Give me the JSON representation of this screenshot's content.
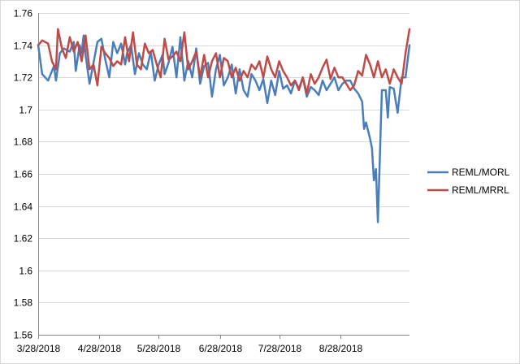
{
  "chart_data": {
    "type": "line",
    "title": "",
    "xlabel": "",
    "ylabel": "",
    "ylim": [
      1.56,
      1.76
    ],
    "yticks": [
      1.56,
      1.58,
      1.6,
      1.62,
      1.64,
      1.66,
      1.68,
      1.7,
      1.72,
      1.74,
      1.76
    ],
    "ytick_labels": [
      "1.56",
      "1.58",
      "1.6",
      "1.62",
      "1.64",
      "1.66",
      "1.68",
      "1.7",
      "1.72",
      "1.74",
      "1.76"
    ],
    "xlim": [
      "2018-03-28",
      "2018-10-02"
    ],
    "xticks": [
      "2018-03-28",
      "2018-04-28",
      "2018-05-28",
      "2018-06-28",
      "2018-07-28",
      "2018-08-28"
    ],
    "xtick_labels": [
      "3/28/2018",
      "4/28/2018",
      "5/28/2018",
      "6/28/2018",
      "7/28/2018",
      "8/28/2018"
    ],
    "grid": "horizontal",
    "legend": "right",
    "series": [
      {
        "name": "REML/MORL",
        "color": "#4a7ebb",
        "x": [
          "2018-03-28",
          "2018-03-30",
          "2018-04-02",
          "2018-04-05",
          "2018-04-06",
          "2018-04-08",
          "2018-04-10",
          "2018-04-13",
          "2018-04-15",
          "2018-04-16",
          "2018-04-18",
          "2018-04-19",
          "2018-04-20",
          "2018-04-21",
          "2018-04-23",
          "2018-04-25",
          "2018-04-27",
          "2018-04-29",
          "2018-05-01",
          "2018-05-03",
          "2018-05-05",
          "2018-05-07",
          "2018-05-09",
          "2018-05-11",
          "2018-05-12",
          "2018-05-14",
          "2018-05-16",
          "2018-05-18",
          "2018-05-20",
          "2018-05-22",
          "2018-05-24",
          "2018-05-26",
          "2018-05-28",
          "2018-05-30",
          "2018-05-31",
          "2018-06-02",
          "2018-06-04",
          "2018-06-06",
          "2018-06-08",
          "2018-06-10",
          "2018-06-12",
          "2018-06-14",
          "2018-06-16",
          "2018-06-18",
          "2018-06-20",
          "2018-06-22",
          "2018-06-24",
          "2018-06-26",
          "2018-06-28",
          "2018-06-30",
          "2018-07-02",
          "2018-07-04",
          "2018-07-06",
          "2018-07-08",
          "2018-07-10",
          "2018-07-12",
          "2018-07-14",
          "2018-07-16",
          "2018-07-18",
          "2018-07-20",
          "2018-07-22",
          "2018-07-24",
          "2018-07-26",
          "2018-07-28",
          "2018-07-30",
          "2018-08-01",
          "2018-08-03",
          "2018-08-05",
          "2018-08-07",
          "2018-08-09",
          "2018-08-11",
          "2018-08-13",
          "2018-08-15",
          "2018-08-17",
          "2018-08-19",
          "2018-08-21",
          "2018-08-23",
          "2018-08-25",
          "2018-08-27",
          "2018-08-29",
          "2018-08-31",
          "2018-09-02",
          "2018-09-04",
          "2018-09-06",
          "2018-09-08",
          "2018-09-09",
          "2018-09-10",
          "2018-09-12",
          "2018-09-13",
          "2018-09-14",
          "2018-09-15",
          "2018-09-16",
          "2018-09-18",
          "2018-09-20",
          "2018-09-21",
          "2018-09-22",
          "2018-09-24",
          "2018-09-26",
          "2018-09-28",
          "2018-09-30",
          "2018-10-02"
        ],
        "y": [
          1.74,
          1.722,
          1.718,
          1.727,
          1.718,
          1.735,
          1.738,
          1.736,
          1.742,
          1.724,
          1.74,
          1.735,
          1.746,
          1.734,
          1.716,
          1.729,
          1.742,
          1.744,
          1.731,
          1.72,
          1.742,
          1.735,
          1.741,
          1.728,
          1.735,
          1.74,
          1.722,
          1.735,
          1.728,
          1.725,
          1.736,
          1.718,
          1.728,
          1.734,
          1.722,
          1.729,
          1.739,
          1.72,
          1.745,
          1.718,
          1.73,
          1.72,
          1.738,
          1.716,
          1.727,
          1.729,
          1.708,
          1.725,
          1.734,
          1.715,
          1.72,
          1.728,
          1.71,
          1.725,
          1.712,
          1.708,
          1.722,
          1.718,
          1.712,
          1.719,
          1.704,
          1.718,
          1.709,
          1.724,
          1.713,
          1.715,
          1.71,
          1.718,
          1.713,
          1.72,
          1.708,
          1.714,
          1.712,
          1.709,
          1.718,
          1.712,
          1.716,
          1.72,
          1.712,
          1.716,
          1.718,
          1.718,
          1.713,
          1.71,
          1.705,
          1.688,
          1.692,
          1.682,
          1.676,
          1.656,
          1.663,
          1.63,
          1.712,
          1.712,
          1.695,
          1.714,
          1.713,
          1.698,
          1.72,
          1.72,
          1.74
        ]
      },
      {
        "name": "REML/MRRL",
        "color": "#be4b48",
        "x": [
          "2018-03-28",
          "2018-03-30",
          "2018-04-02",
          "2018-04-04",
          "2018-04-06",
          "2018-04-07",
          "2018-04-09",
          "2018-04-11",
          "2018-04-13",
          "2018-04-15",
          "2018-04-17",
          "2018-04-19",
          "2018-04-21",
          "2018-04-23",
          "2018-04-25",
          "2018-04-27",
          "2018-04-29",
          "2018-05-01",
          "2018-05-03",
          "2018-05-05",
          "2018-05-07",
          "2018-05-09",
          "2018-05-11",
          "2018-05-13",
          "2018-05-15",
          "2018-05-17",
          "2018-05-19",
          "2018-05-21",
          "2018-05-23",
          "2018-05-25",
          "2018-05-27",
          "2018-05-29",
          "2018-05-31",
          "2018-06-02",
          "2018-06-04",
          "2018-06-06",
          "2018-06-08",
          "2018-06-10",
          "2018-06-12",
          "2018-06-14",
          "2018-06-16",
          "2018-06-18",
          "2018-06-20",
          "2018-06-22",
          "2018-06-24",
          "2018-06-26",
          "2018-06-28",
          "2018-06-30",
          "2018-07-02",
          "2018-07-04",
          "2018-07-06",
          "2018-07-08",
          "2018-07-10",
          "2018-07-12",
          "2018-07-14",
          "2018-07-16",
          "2018-07-18",
          "2018-07-20",
          "2018-07-22",
          "2018-07-24",
          "2018-07-26",
          "2018-07-28",
          "2018-07-30",
          "2018-08-01",
          "2018-08-03",
          "2018-08-05",
          "2018-08-07",
          "2018-08-09",
          "2018-08-11",
          "2018-08-13",
          "2018-08-15",
          "2018-08-17",
          "2018-08-19",
          "2018-08-21",
          "2018-08-23",
          "2018-08-25",
          "2018-08-27",
          "2018-08-29",
          "2018-08-31",
          "2018-09-02",
          "2018-09-04",
          "2018-09-06",
          "2018-09-08",
          "2018-09-10",
          "2018-09-12",
          "2018-09-14",
          "2018-09-16",
          "2018-09-18",
          "2018-09-20",
          "2018-09-22",
          "2018-09-24",
          "2018-09-26",
          "2018-09-28",
          "2018-09-30",
          "2018-10-02"
        ],
        "y": [
          1.74,
          1.743,
          1.741,
          1.73,
          1.725,
          1.75,
          1.738,
          1.732,
          1.745,
          1.736,
          1.742,
          1.73,
          1.746,
          1.725,
          1.728,
          1.715,
          1.739,
          1.735,
          1.732,
          1.727,
          1.73,
          1.728,
          1.745,
          1.73,
          1.748,
          1.728,
          1.725,
          1.741,
          1.735,
          1.737,
          1.728,
          1.72,
          1.744,
          1.731,
          1.733,
          1.736,
          1.73,
          1.748,
          1.725,
          1.73,
          1.736,
          1.72,
          1.734,
          1.72,
          1.73,
          1.735,
          1.72,
          1.732,
          1.73,
          1.72,
          1.726,
          1.718,
          1.724,
          1.72,
          1.728,
          1.725,
          1.73,
          1.72,
          1.733,
          1.725,
          1.72,
          1.73,
          1.724,
          1.72,
          1.715,
          1.718,
          1.712,
          1.72,
          1.71,
          1.722,
          1.716,
          1.72,
          1.726,
          1.731,
          1.719,
          1.726,
          1.72,
          1.72,
          1.716,
          1.712,
          1.715,
          1.724,
          1.721,
          1.734,
          1.728,
          1.72,
          1.73,
          1.72,
          1.725,
          1.716,
          1.725,
          1.72,
          1.716,
          1.735,
          1.75
        ]
      }
    ]
  }
}
